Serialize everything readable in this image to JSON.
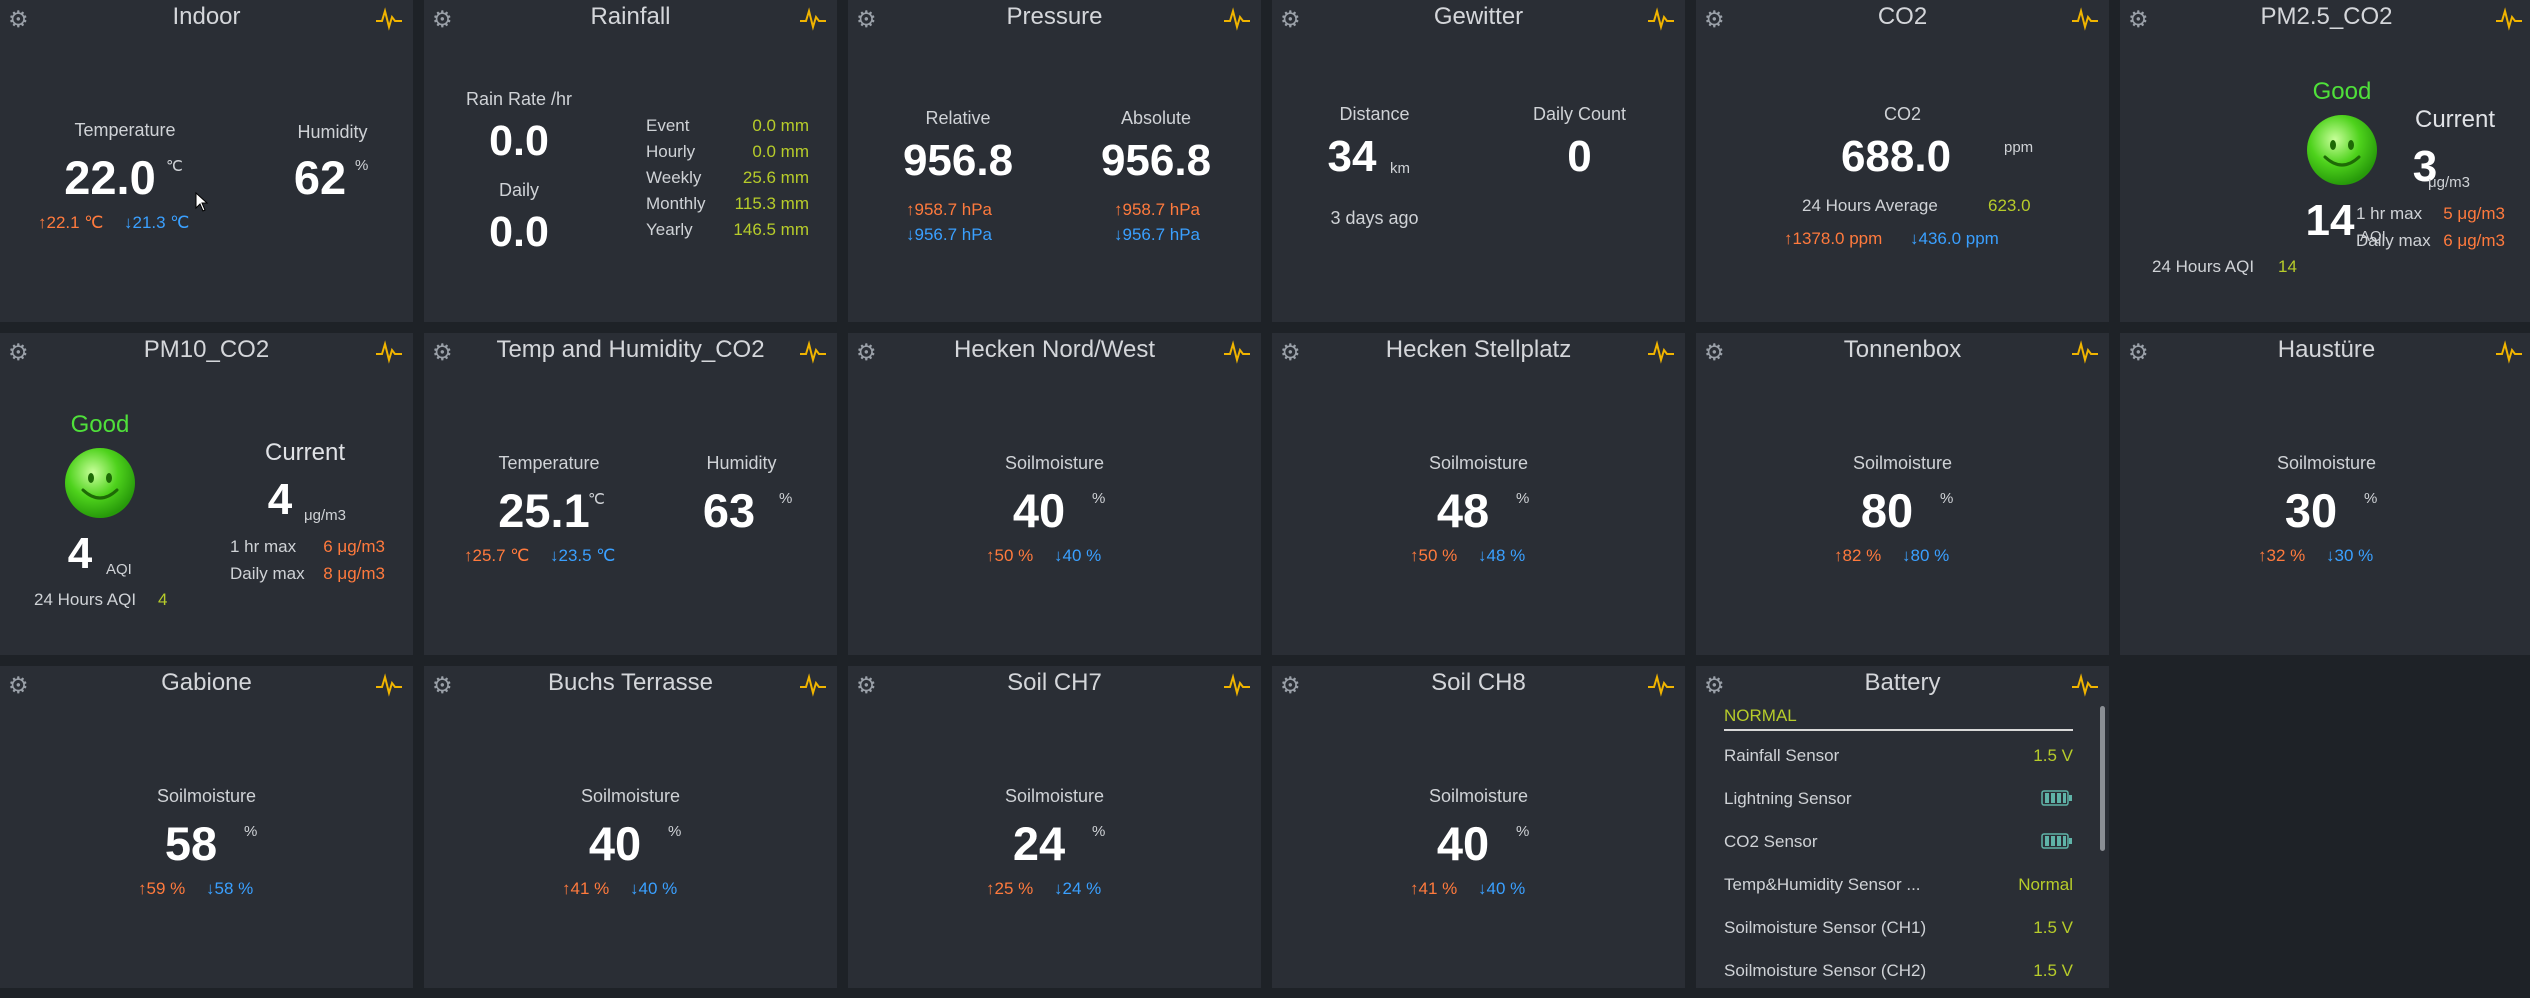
{
  "colors": {
    "background": "#1e2227",
    "card": "#2a2e35",
    "high": "#ff7a3d",
    "low": "#3aa0ff",
    "accent": "#b7cc2a",
    "good": "#4fe03a",
    "pulse_icon": "#f0b400"
  },
  "indoor": {
    "title": "Indoor",
    "temp_label": "Temperature",
    "temp": "22.0",
    "temp_unit": "℃",
    "temp_hi": "↑22.1 ℃",
    "temp_lo": "↓21.3 ℃",
    "hum_label": "Humidity",
    "hum": "62",
    "hum_unit": "%"
  },
  "rainfall": {
    "title": "Rainfall",
    "rate_label": "Rain Rate /hr",
    "rate": "0.0",
    "daily_label": "Daily",
    "daily": "0.0",
    "rows": [
      {
        "label": "Event",
        "value": "0.0 mm"
      },
      {
        "label": "Hourly",
        "value": "0.0 mm"
      },
      {
        "label": "Weekly",
        "value": "25.6 mm"
      },
      {
        "label": "Monthly",
        "value": "115.3 mm"
      },
      {
        "label": "Yearly",
        "value": "146.5 mm"
      }
    ]
  },
  "pressure": {
    "title": "Pressure",
    "rel_label": "Relative",
    "rel": "956.8",
    "rel_hi": "↑958.7 hPa",
    "rel_lo": "↓956.7 hPa",
    "abs_label": "Absolute",
    "abs": "956.8",
    "abs_hi": "↑958.7 hPa",
    "abs_lo": "↓956.7 hPa"
  },
  "gewitter": {
    "title": "Gewitter",
    "dist_label": "Distance",
    "dist": "34",
    "dist_unit": "km",
    "ago": "3 days ago",
    "count_label": "Daily Count",
    "count": "0"
  },
  "co2": {
    "title": "CO2",
    "label": "CO2",
    "value": "688.0",
    "unit": "ppm",
    "avg_label": "24 Hours Average",
    "avg": "623.0",
    "hi": "↑1378.0 ppm",
    "lo": "↓436.0 ppm"
  },
  "pm25": {
    "title": "PM2.5_CO2",
    "status": "Good",
    "aqi": "14",
    "aqi_unit": "AQI",
    "aqi24_label": "24 Hours AQI",
    "aqi24": "14",
    "current_label": "Current",
    "current": "3",
    "current_unit": "μg/m3",
    "hr_label": "1 hr max",
    "hr": "5 μg/m3",
    "day_label": "Daily max",
    "day": "6 μg/m3"
  },
  "pm10": {
    "title": "PM10_CO2",
    "status": "Good",
    "aqi": "4",
    "aqi_unit": "AQI",
    "aqi24_label": "24 Hours AQI",
    "aqi24": "4",
    "current_label": "Current",
    "current": "4",
    "current_unit": "μg/m3",
    "hr_label": "1 hr max",
    "hr": "6 μg/m3",
    "day_label": "Daily max",
    "day": "8 μg/m3"
  },
  "temphum": {
    "title": "Temp and Humidity_CO2",
    "temp_label": "Temperature",
    "temp": "25.1",
    "temp_unit": "℃",
    "temp_hi": "↑25.7 ℃",
    "temp_lo": "↓23.5 ℃",
    "hum_label": "Humidity",
    "hum": "63",
    "hum_unit": "%"
  },
  "soil": [
    {
      "title": "Hecken Nord/West",
      "label": "Soilmoisture",
      "value": "40",
      "unit": "%",
      "hi": "↑50 %",
      "lo": "↓40 %"
    },
    {
      "title": "Hecken Stellplatz",
      "label": "Soilmoisture",
      "value": "48",
      "unit": "%",
      "hi": "↑50 %",
      "lo": "↓48 %"
    },
    {
      "title": "Tonnenbox",
      "label": "Soilmoisture",
      "value": "80",
      "unit": "%",
      "hi": "↑82 %",
      "lo": "↓80 %"
    },
    {
      "title": "Haustüre",
      "label": "Soilmoisture",
      "value": "30",
      "unit": "%",
      "hi": "↑32 %",
      "lo": "↓30 %"
    },
    {
      "title": "Gabione",
      "label": "Soilmoisture",
      "value": "58",
      "unit": "%",
      "hi": "↑59 %",
      "lo": "↓58 %"
    },
    {
      "title": "Buchs Terrasse",
      "label": "Soilmoisture",
      "value": "40",
      "unit": "%",
      "hi": "↑41 %",
      "lo": "↓40 %"
    },
    {
      "title": "Soil CH7",
      "label": "Soilmoisture",
      "value": "24",
      "unit": "%",
      "hi": "↑25 %",
      "lo": "↓24 %"
    },
    {
      "title": "Soil CH8",
      "label": "Soilmoisture",
      "value": "40",
      "unit": "%",
      "hi": "↑41 %",
      "lo": "↓40 %"
    }
  ],
  "battery": {
    "title": "Battery",
    "section": "NORMAL",
    "rows": [
      {
        "label": "Rainfall Sensor",
        "value": "1.5 V",
        "icon": ""
      },
      {
        "label": "Lightning Sensor",
        "value": "",
        "icon": "battery-full-icon"
      },
      {
        "label": "CO2 Sensor",
        "value": "",
        "icon": "battery-full-icon"
      },
      {
        "label": "Temp&Humidity Sensor ...",
        "value": "Normal",
        "icon": ""
      },
      {
        "label": "Soilmoisture Sensor (CH1)",
        "value": "1.5 V",
        "icon": ""
      },
      {
        "label": "Soilmoisture Sensor (CH2)",
        "value": "1.5 V",
        "icon": ""
      }
    ]
  }
}
